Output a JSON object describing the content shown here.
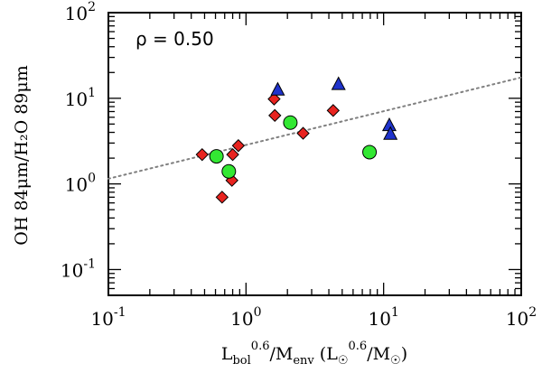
{
  "chart_data": {
    "type": "scatter",
    "x_scale": "log",
    "y_scale": "log",
    "xlim": [
      0.1,
      100
    ],
    "ylim": [
      0.05,
      100
    ],
    "grid": false,
    "x_major_ticks": [
      {
        "value": 0.1,
        "base": "10",
        "exp": "-1"
      },
      {
        "value": 1,
        "base": "10",
        "exp": "0"
      },
      {
        "value": 10,
        "base": "10",
        "exp": "1"
      },
      {
        "value": 100,
        "base": "10",
        "exp": "2"
      }
    ],
    "y_major_ticks": [
      {
        "value": 0.1,
        "base": "10",
        "exp": "-1"
      },
      {
        "value": 1,
        "base": "10",
        "exp": "0"
      },
      {
        "value": 10,
        "base": "10",
        "exp": "1"
      },
      {
        "value": 100,
        "base": "10",
        "exp": "2"
      }
    ],
    "ylabel": "OH 84μm/H₂O 89μm",
    "xlabel": {
      "part1": "L",
      "sub1": "bol",
      "sup1": "0.6",
      "part2": "/M",
      "sub2": "env",
      "part3": " (L",
      "sub3": "☉",
      "sup3": "0.6",
      "part4": "/M",
      "sub4": "☉",
      "part5": ")"
    },
    "annotation": "ρ = 0.50",
    "fit_line": {
      "style": "dotted",
      "color": "#808080",
      "x": [
        0.1,
        100
      ],
      "y": [
        1.15,
        17.5
      ]
    },
    "series": [
      {
        "marker": "diamond",
        "color": "#e8231f",
        "points": [
          {
            "x": 0.48,
            "y": 2.2
          },
          {
            "x": 0.67,
            "y": 0.7
          },
          {
            "x": 0.79,
            "y": 1.1
          },
          {
            "x": 0.8,
            "y": 2.2
          },
          {
            "x": 0.88,
            "y": 2.8
          },
          {
            "x": 1.6,
            "y": 9.8
          },
          {
            "x": 1.62,
            "y": 6.3
          },
          {
            "x": 2.6,
            "y": 3.9
          },
          {
            "x": 4.3,
            "y": 7.2
          }
        ]
      },
      {
        "marker": "circle",
        "color": "#33e833",
        "points": [
          {
            "x": 0.61,
            "y": 2.1
          },
          {
            "x": 0.75,
            "y": 1.4
          },
          {
            "x": 2.1,
            "y": 5.2
          },
          {
            "x": 7.9,
            "y": 2.35
          }
        ]
      },
      {
        "marker": "triangle",
        "color": "#1f33cc",
        "points": [
          {
            "x": 1.7,
            "y": 12.5
          },
          {
            "x": 4.7,
            "y": 14.5
          },
          {
            "x": 11.0,
            "y": 4.8
          },
          {
            "x": 11.2,
            "y": 3.8
          }
        ]
      }
    ]
  }
}
